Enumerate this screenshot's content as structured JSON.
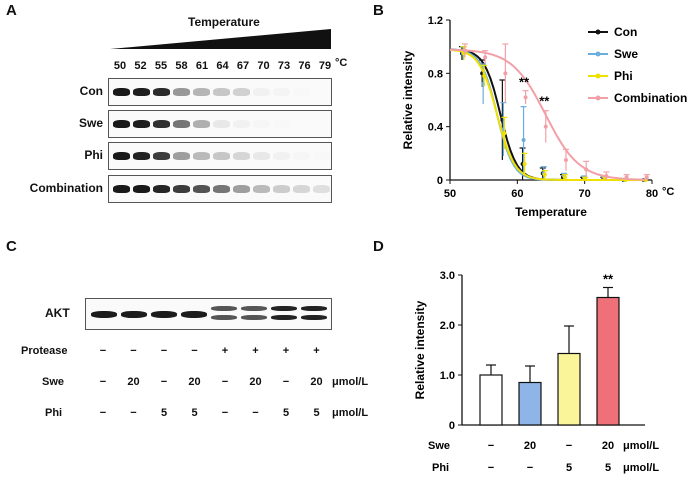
{
  "panelA": {
    "letter": "A",
    "header": "Temperature",
    "temps": [
      "50",
      "52",
      "55",
      "58",
      "61",
      "64",
      "67",
      "70",
      "73",
      "76",
      "79"
    ],
    "unit": "°C",
    "rows": [
      {
        "label": "Con",
        "intensity": [
          1.0,
          0.98,
          0.92,
          0.45,
          0.32,
          0.25,
          0.2,
          0.06,
          0.05,
          0.03,
          0.02
        ]
      },
      {
        "label": "Swe",
        "intensity": [
          1.0,
          0.98,
          0.9,
          0.6,
          0.35,
          0.1,
          0.06,
          0.04,
          0.03,
          0.02,
          0.02
        ]
      },
      {
        "label": "Phi",
        "intensity": [
          1.0,
          0.96,
          0.85,
          0.42,
          0.3,
          0.25,
          0.18,
          0.1,
          0.06,
          0.04,
          0.03
        ]
      },
      {
        "label": "Combination",
        "intensity": [
          1.0,
          1.0,
          0.95,
          0.85,
          0.75,
          0.6,
          0.42,
          0.3,
          0.22,
          0.18,
          0.14
        ]
      }
    ]
  },
  "panelB": {
    "letter": "B",
    "chart_data": {
      "type": "line",
      "title": "",
      "xlabel": "Temperature",
      "ylabel": "Relative intensity",
      "xunit": "°C",
      "xlim": [
        50,
        80
      ],
      "ylim": [
        0,
        1.2
      ],
      "xticks": [
        50,
        60,
        70,
        80
      ],
      "yticks": [
        0,
        0.4,
        0.8,
        1.2
      ],
      "ytick_labels": [
        "0",
        "0.4",
        "0.8",
        "1.2"
      ],
      "legend_position": "top-right",
      "series": [
        {
          "name": "Con",
          "color": "#111111",
          "tm": 57.5,
          "k": 1.2,
          "x": [
            52,
            55,
            58,
            61,
            64,
            67,
            70,
            73,
            76,
            79
          ],
          "y": [
            0.95,
            0.8,
            0.45,
            0.12,
            0.05,
            0.02,
            0.01,
            0.01,
            0.0,
            0.0
          ],
          "err": [
            0.05,
            0.1,
            0.3,
            0.12,
            0.04,
            0.02,
            0.01,
            0.01,
            0,
            0
          ]
        },
        {
          "name": "Swe",
          "color": "#6aaee0",
          "tm": 57.0,
          "k": 1.2,
          "x": [
            52,
            55,
            58,
            61,
            64,
            67,
            70,
            73,
            76,
            79
          ],
          "y": [
            0.95,
            0.72,
            0.38,
            0.3,
            0.05,
            0.03,
            0.02,
            0.01,
            0.0,
            0.0
          ],
          "err": [
            0.05,
            0.15,
            0.2,
            0.25,
            0.05,
            0.02,
            0.01,
            0.01,
            0,
            0
          ]
        },
        {
          "name": "Phi",
          "color": "#f0e000",
          "tm": 57.0,
          "k": 1.3,
          "x": [
            52,
            55,
            58,
            61,
            64,
            67,
            70,
            73,
            76,
            79
          ],
          "y": [
            0.95,
            0.78,
            0.35,
            0.12,
            0.04,
            0.02,
            0.01,
            0.01,
            0.0,
            0.0
          ],
          "err": [
            0.05,
            0.08,
            0.12,
            0.08,
            0.03,
            0.02,
            0.01,
            0.01,
            0,
            0
          ]
        },
        {
          "name": "Combination",
          "color": "#f2a0a8",
          "tm": 64.2,
          "k": 2.5,
          "x": [
            52,
            55,
            58,
            61,
            64,
            67,
            70,
            73,
            76,
            79
          ],
          "y": [
            0.97,
            0.92,
            0.8,
            0.62,
            0.4,
            0.15,
            0.08,
            0.03,
            0.02,
            0.02
          ],
          "err": [
            0.05,
            0.05,
            0.22,
            0.05,
            0.12,
            0.08,
            0.06,
            0.03,
            0.02,
            0.02
          ]
        }
      ],
      "annotations": [
        {
          "text": "**",
          "x": 61,
          "y": 0.7
        },
        {
          "text": "**",
          "x": 64,
          "y": 0.56
        }
      ]
    }
  },
  "panelC": {
    "letter": "C",
    "blot_label": "AKT",
    "lanes": 8,
    "protease_label": "Protease",
    "protease": [
      "−",
      "−",
      "−",
      "−",
      "+",
      "+",
      "+",
      "+"
    ],
    "swe_label": "Swe",
    "swe": [
      "−",
      "20",
      "−",
      "20",
      "−",
      "20",
      "−",
      "20"
    ],
    "phi_label": "Phi",
    "phi": [
      "−",
      "−",
      "5",
      "5",
      "−",
      "−",
      "5",
      "5"
    ],
    "unit": "μmol/L"
  },
  "panelD": {
    "letter": "D",
    "chart_data": {
      "type": "bar",
      "ylabel": "Relative intensity",
      "ylim": [
        0,
        3.0
      ],
      "yticks": [
        "0",
        "1.0",
        "2.0",
        "3.0"
      ],
      "categories": [
        "Con",
        "Swe",
        "Phi",
        "Combination"
      ],
      "values": [
        1.0,
        0.85,
        1.43,
        2.55
      ],
      "errors": [
        0.2,
        0.33,
        0.55,
        0.2
      ],
      "colors": [
        "#ffffff",
        "#8eb4e8",
        "#fbf59a",
        "#f0707a"
      ],
      "significance": [
        "",
        "",
        "",
        "**"
      ],
      "swe_label": "Swe",
      "swe": [
        "−",
        "20",
        "−",
        "20"
      ],
      "phi_label": "Phi",
      "phi": [
        "−",
        "−",
        "5",
        "5"
      ],
      "unit": "μmol/L"
    }
  }
}
